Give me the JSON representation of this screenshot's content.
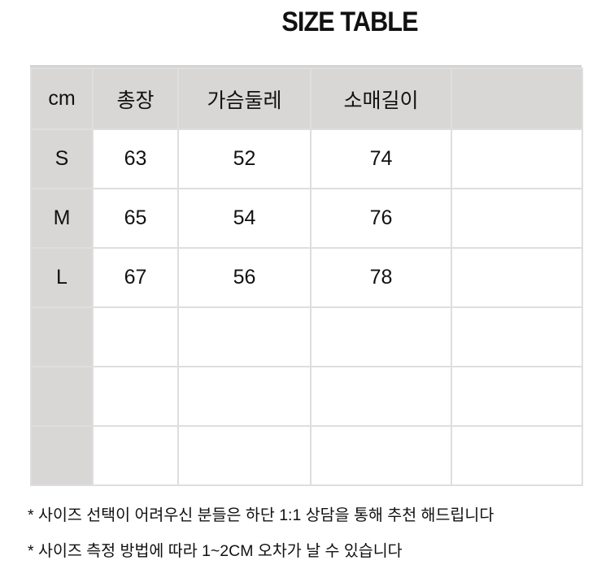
{
  "title": "SIZE TABLE",
  "table": {
    "headers": [
      "cm",
      "총장",
      "가슴둘레",
      "소매길이",
      ""
    ],
    "rows": [
      [
        "S",
        "63",
        "52",
        "74",
        ""
      ],
      [
        "M",
        "65",
        "54",
        "76",
        ""
      ],
      [
        "L",
        "67",
        "56",
        "78",
        ""
      ],
      [
        "",
        "",
        "",
        "",
        ""
      ],
      [
        "",
        "",
        "",
        "",
        ""
      ],
      [
        "",
        "",
        "",
        "",
        ""
      ]
    ]
  },
  "notes": [
    "* 사이즈 선택이 어려우신 분들은 하단 1:1 상담을 통해 추천 해드립니다",
    "* 사이즈 측정 방법에 따라 1~2CM 오차가 날 수 있습니다"
  ],
  "colors": {
    "header_bg": "#d9d6d6",
    "border": "#dedede"
  }
}
